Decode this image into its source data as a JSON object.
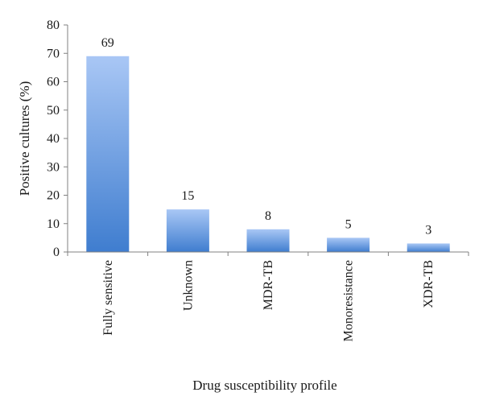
{
  "chart_data": {
    "type": "bar",
    "categories": [
      "Fully sensitive",
      "Unknown",
      "MDR-TB",
      "Monoresistance",
      "XDR-TB"
    ],
    "values": [
      69,
      15,
      8,
      5,
      3
    ],
    "data_labels": [
      "69",
      "15",
      "8",
      "5",
      "3"
    ],
    "xlabel": "Drug susceptibility profile",
    "ylabel": "Positive cultures (%)",
    "ylim": [
      0,
      80
    ],
    "yticks": [
      "0",
      "10",
      "20",
      "30",
      "40",
      "50",
      "60",
      "70",
      "80"
    ],
    "grid": false,
    "legend": "none",
    "colors": {
      "bar_top": "#a9c7f5",
      "bar_bottom": "#3f7dcf",
      "axis": "#808080"
    }
  }
}
